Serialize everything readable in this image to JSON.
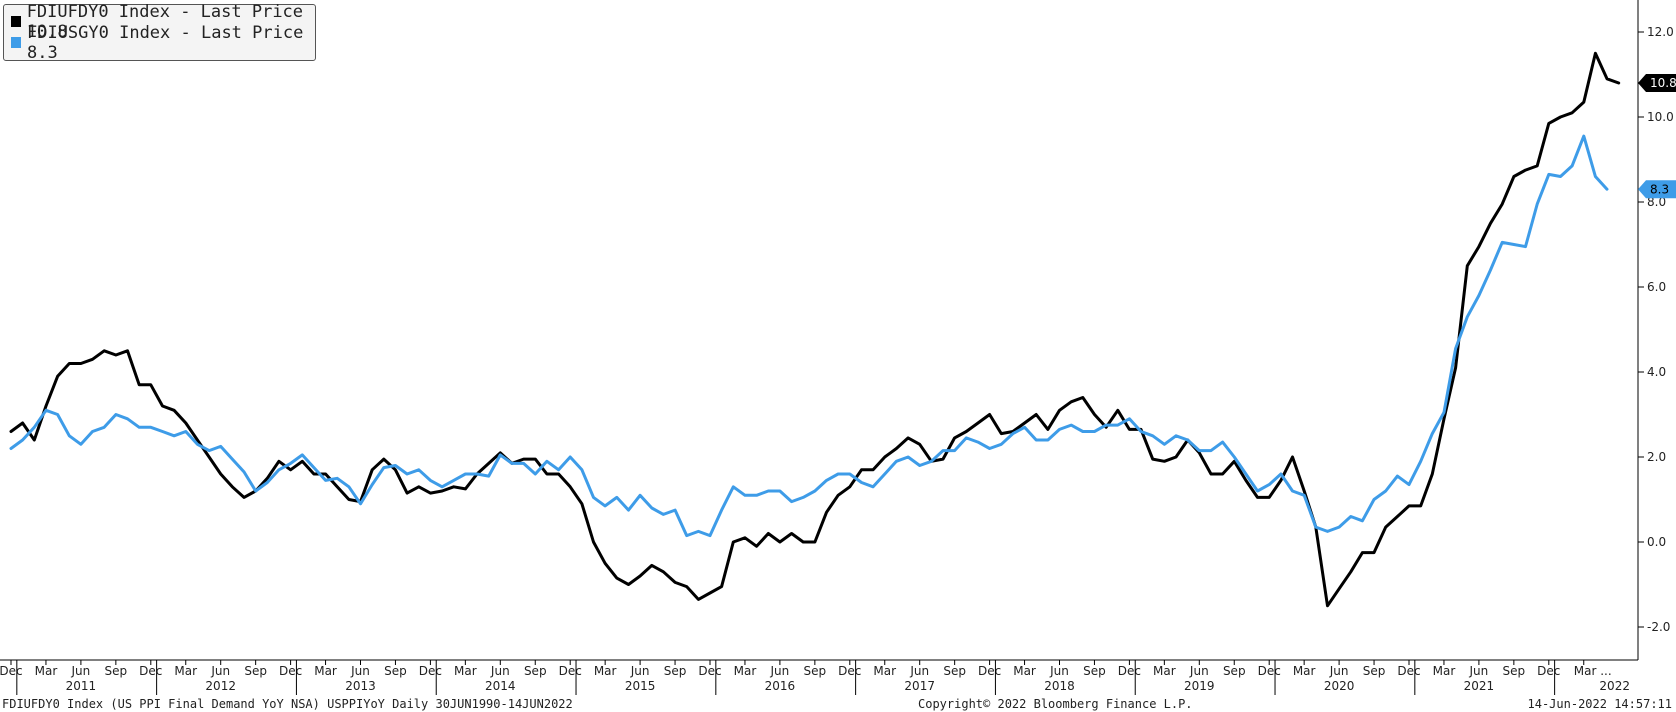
{
  "legend": {
    "items": [
      {
        "label": "FDIUFDY0 Index - Last Price 10.8",
        "color": "#000000"
      },
      {
        "label": "FDIUSGY0 Index - Last Price 8.3",
        "color": "#3e9ce8"
      }
    ]
  },
  "footer": {
    "left": "FDIUFDY0 Index (US PPI Final Demand YoY NSA) USPPIYoY  Daily 30JUN1990-14JUN2022",
    "center": "Copyright© 2022 Bloomberg Finance L.P.",
    "right": "14-Jun-2022 14:57:11"
  },
  "chart_data": {
    "type": "line",
    "title": "",
    "xlabel": "",
    "ylabel": "",
    "ylim": [
      -2.8,
      12.8
    ],
    "y_axis_position": "right",
    "y_ticks": [
      -2.0,
      0.0,
      2.0,
      4.0,
      6.0,
      8.0,
      10.0,
      12.0
    ],
    "y_tick_labels": [
      "-2.0",
      "0.0",
      "2.0",
      "4.0",
      "6.0",
      "8.0",
      "10.0",
      "12.0"
    ],
    "x_start": "2010-12",
    "x_end": "2022-05",
    "x_month_ticks": [
      "Dec",
      "Mar",
      "Jun",
      "Sep",
      "Dec",
      "Mar",
      "Jun",
      "Sep",
      "Dec",
      "Mar",
      "Jun",
      "Sep",
      "Dec",
      "Mar",
      "Jun",
      "Sep",
      "Dec",
      "Mar",
      "Jun",
      "Sep",
      "Dec",
      "Mar",
      "Jun",
      "Sep",
      "Dec",
      "Mar",
      "Jun",
      "Sep",
      "Dec",
      "Mar",
      "Jun",
      "Sep",
      "Dec",
      "Mar",
      "Jun",
      "Sep",
      "Dec",
      "Mar",
      "Jun",
      "Sep",
      "Dec",
      "Mar",
      "Jun",
      "Sep",
      "Dec",
      "Mar ..."
    ],
    "x_year_labels": [
      "2011",
      "2012",
      "2013",
      "2014",
      "2015",
      "2016",
      "2017",
      "2018",
      "2019",
      "2020",
      "2021",
      "2022"
    ],
    "grid": false,
    "legend_position": "top-left",
    "last_value_labels": [
      {
        "text": "10.8",
        "value": 10.8,
        "bg": "#000000",
        "fg": "#ffffff"
      },
      {
        "text": "8.3",
        "value": 8.3,
        "bg": "#3e9ce8",
        "fg": "#000000"
      }
    ],
    "series": [
      {
        "name": "FDIUFDY0 Index",
        "color": "#000000",
        "values": [
          2.6,
          2.8,
          2.4,
          3.2,
          3.9,
          4.2,
          4.2,
          4.3,
          4.5,
          4.4,
          4.5,
          3.7,
          3.7,
          3.2,
          3.1,
          2.8,
          2.4,
          2.0,
          1.6,
          1.3,
          1.05,
          1.2,
          1.5,
          1.9,
          1.7,
          1.9,
          1.6,
          1.6,
          1.3,
          1.0,
          0.95,
          1.7,
          1.95,
          1.7,
          1.15,
          1.3,
          1.15,
          1.2,
          1.3,
          1.25,
          1.6,
          1.85,
          2.1,
          1.85,
          1.95,
          1.95,
          1.6,
          1.6,
          1.3,
          0.9,
          0.0,
          -0.5,
          -0.85,
          -1.0,
          -0.8,
          -0.55,
          -0.7,
          -0.95,
          -1.05,
          -1.35,
          -1.2,
          -1.05,
          0.0,
          0.1,
          -0.1,
          0.2,
          0.0,
          0.2,
          0.0,
          0.0,
          0.7,
          1.1,
          1.3,
          1.7,
          1.7,
          2.0,
          2.2,
          2.45,
          2.3,
          1.9,
          1.95,
          2.45,
          2.6,
          2.8,
          3.0,
          2.55,
          2.6,
          2.8,
          3.0,
          2.65,
          3.1,
          3.3,
          3.4,
          3.0,
          2.7,
          3.1,
          2.65,
          2.65,
          1.95,
          1.9,
          2.0,
          2.4,
          2.1,
          1.6,
          1.6,
          1.9,
          1.45,
          1.05,
          1.05,
          1.45,
          2.0,
          1.2,
          0.35,
          -1.5,
          -1.1,
          -0.7,
          -0.25,
          -0.25,
          0.35,
          0.6,
          0.85,
          0.85,
          1.6,
          2.9,
          4.1,
          6.5,
          6.95,
          7.5,
          7.95,
          8.6,
          8.75,
          8.85,
          9.85,
          10.0,
          10.1,
          10.35,
          11.5,
          10.9,
          10.8
        ]
      },
      {
        "name": "FDIUSGY0 Index",
        "color": "#3e9ce8",
        "values": [
          2.2,
          2.4,
          2.7,
          3.1,
          3.0,
          2.5,
          2.3,
          2.6,
          2.7,
          3.0,
          2.9,
          2.7,
          2.7,
          2.6,
          2.5,
          2.6,
          2.3,
          2.15,
          2.25,
          1.95,
          1.65,
          1.2,
          1.4,
          1.7,
          1.85,
          2.05,
          1.75,
          1.45,
          1.5,
          1.3,
          0.9,
          1.35,
          1.75,
          1.8,
          1.6,
          1.7,
          1.45,
          1.3,
          1.45,
          1.6,
          1.6,
          1.55,
          2.05,
          1.85,
          1.85,
          1.6,
          1.9,
          1.7,
          2.0,
          1.7,
          1.05,
          0.85,
          1.05,
          0.75,
          1.1,
          0.8,
          0.65,
          0.75,
          0.15,
          0.25,
          0.15,
          0.75,
          1.3,
          1.1,
          1.1,
          1.2,
          1.2,
          0.95,
          1.05,
          1.2,
          1.45,
          1.6,
          1.6,
          1.4,
          1.3,
          1.6,
          1.9,
          2.0,
          1.8,
          1.9,
          2.15,
          2.15,
          2.45,
          2.35,
          2.2,
          2.3,
          2.55,
          2.7,
          2.4,
          2.4,
          2.65,
          2.75,
          2.6,
          2.6,
          2.75,
          2.75,
          2.9,
          2.6,
          2.5,
          2.3,
          2.5,
          2.4,
          2.15,
          2.15,
          2.35,
          2.0,
          1.6,
          1.2,
          1.35,
          1.6,
          1.2,
          1.1,
          0.35,
          0.25,
          0.35,
          0.6,
          0.5,
          1.0,
          1.2,
          1.55,
          1.35,
          1.9,
          2.55,
          3.05,
          4.55,
          5.3,
          5.8,
          6.4,
          7.05,
          7.0,
          6.95,
          7.95,
          8.65,
          8.6,
          8.85,
          9.55,
          8.6,
          8.3
        ]
      }
    ]
  }
}
